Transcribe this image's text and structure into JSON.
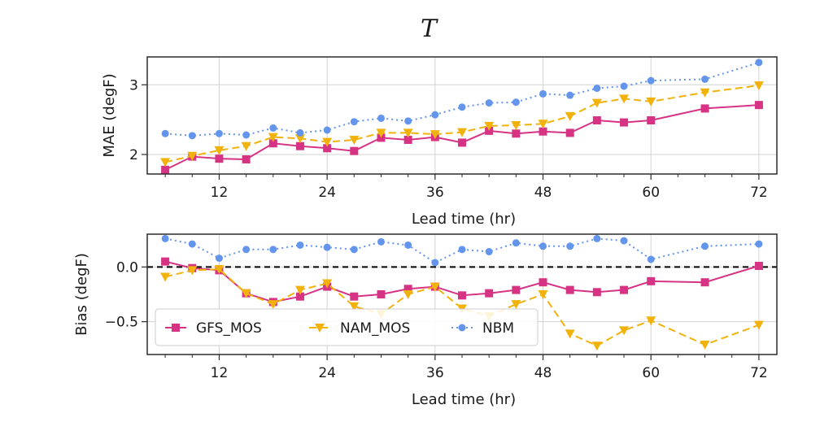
{
  "figure": {
    "title": "T"
  },
  "colors": {
    "gfs": "#d63384",
    "nam": "#f2b20c",
    "nbm": "#6495ed",
    "grid": "#d3d3d3",
    "axis": "#2b2b2b"
  },
  "chart_data": [
    {
      "type": "line",
      "xlabel": "Lead time (hr)",
      "ylabel": "MAE (degF)",
      "xlim": [
        4,
        74
      ],
      "ylim": [
        1.72,
        3.4
      ],
      "xticks": [
        12,
        24,
        36,
        48,
        60,
        72
      ],
      "yticks": [
        2,
        3
      ],
      "grid": true,
      "series": [
        {
          "name": "GFS_MOS",
          "color": "#d63384",
          "marker": "square",
          "linestyle": "solid",
          "x": [
            6,
            9,
            12,
            15,
            18,
            21,
            24,
            27,
            30,
            33,
            36,
            39,
            42,
            45,
            48,
            51,
            54,
            57,
            60,
            66,
            72
          ],
          "y": [
            1.78,
            1.97,
            1.94,
            1.93,
            2.16,
            2.12,
            2.09,
            2.05,
            2.24,
            2.21,
            2.25,
            2.17,
            2.34,
            2.3,
            2.33,
            2.31,
            2.49,
            2.46,
            2.49,
            2.66,
            2.71
          ]
        },
        {
          "name": "NAM_MOS",
          "color": "#f2b20c",
          "marker": "triangle-down",
          "linestyle": "dashed",
          "x": [
            6,
            9,
            12,
            15,
            18,
            21,
            24,
            27,
            30,
            33,
            36,
            39,
            42,
            45,
            48,
            51,
            54,
            57,
            60,
            66,
            72
          ],
          "y": [
            1.89,
            1.98,
            2.06,
            2.12,
            2.25,
            2.23,
            2.18,
            2.21,
            2.31,
            2.31,
            2.29,
            2.32,
            2.41,
            2.42,
            2.44,
            2.55,
            2.74,
            2.8,
            2.76,
            2.89,
            2.99
          ]
        },
        {
          "name": "NBM",
          "color": "#6495ed",
          "marker": "circle",
          "linestyle": "dotted",
          "x": [
            6,
            9,
            12,
            15,
            18,
            21,
            24,
            27,
            30,
            33,
            36,
            39,
            42,
            45,
            48,
            51,
            54,
            57,
            60,
            66,
            72
          ],
          "y": [
            2.3,
            2.27,
            2.3,
            2.28,
            2.38,
            2.31,
            2.35,
            2.47,
            2.52,
            2.48,
            2.57,
            2.68,
            2.74,
            2.75,
            2.87,
            2.85,
            2.95,
            2.98,
            3.06,
            3.08,
            3.32
          ]
        }
      ]
    },
    {
      "type": "line",
      "xlabel": "Lead time (hr)",
      "ylabel": "Bias (degF)",
      "xlim": [
        4,
        74
      ],
      "ylim": [
        -0.8,
        0.3
      ],
      "xticks": [
        12,
        24,
        36,
        48,
        60,
        72
      ],
      "yticks": [
        -0.5,
        0.0
      ],
      "ytick_labels": [
        "−0.5",
        "0.0"
      ],
      "grid": true,
      "reference_line": {
        "y": 0.0,
        "style": "dashed",
        "color": "#000000"
      },
      "legend": {
        "placement": "lower-left"
      },
      "series": [
        {
          "name": "GFS_MOS",
          "label": "GFS_MOS",
          "color": "#d63384",
          "marker": "square",
          "linestyle": "solid",
          "x": [
            6,
            9,
            12,
            15,
            18,
            21,
            24,
            27,
            30,
            33,
            36,
            39,
            42,
            45,
            48,
            51,
            54,
            57,
            60,
            66,
            72
          ],
          "y": [
            0.05,
            -0.01,
            -0.03,
            -0.24,
            -0.32,
            -0.27,
            -0.18,
            -0.27,
            -0.25,
            -0.2,
            -0.18,
            -0.26,
            -0.24,
            -0.21,
            -0.14,
            -0.21,
            -0.23,
            -0.21,
            -0.13,
            -0.14,
            0.01
          ]
        },
        {
          "name": "NAM_MOS",
          "label": "NAM_MOS",
          "color": "#f2b20c",
          "marker": "triangle-down",
          "linestyle": "dashed",
          "x": [
            6,
            9,
            12,
            15,
            18,
            21,
            24,
            27,
            30,
            33,
            36,
            39,
            42,
            45,
            48,
            51,
            54,
            57,
            60,
            66,
            72
          ],
          "y": [
            -0.09,
            -0.03,
            -0.02,
            -0.24,
            -0.34,
            -0.21,
            -0.15,
            -0.36,
            -0.43,
            -0.25,
            -0.18,
            -0.38,
            -0.45,
            -0.34,
            -0.25,
            -0.61,
            -0.72,
            -0.58,
            -0.49,
            -0.71,
            -0.53
          ]
        },
        {
          "name": "NBM",
          "label": "NBM",
          "color": "#6495ed",
          "marker": "circle",
          "linestyle": "dotted",
          "x": [
            6,
            9,
            12,
            15,
            18,
            21,
            24,
            27,
            30,
            33,
            36,
            39,
            42,
            45,
            48,
            51,
            54,
            57,
            60,
            66,
            72
          ],
          "y": [
            0.26,
            0.21,
            0.08,
            0.16,
            0.16,
            0.2,
            0.18,
            0.16,
            0.23,
            0.2,
            0.04,
            0.16,
            0.14,
            0.22,
            0.19,
            0.19,
            0.26,
            0.24,
            0.07,
            0.19,
            0.21
          ]
        }
      ]
    }
  ]
}
